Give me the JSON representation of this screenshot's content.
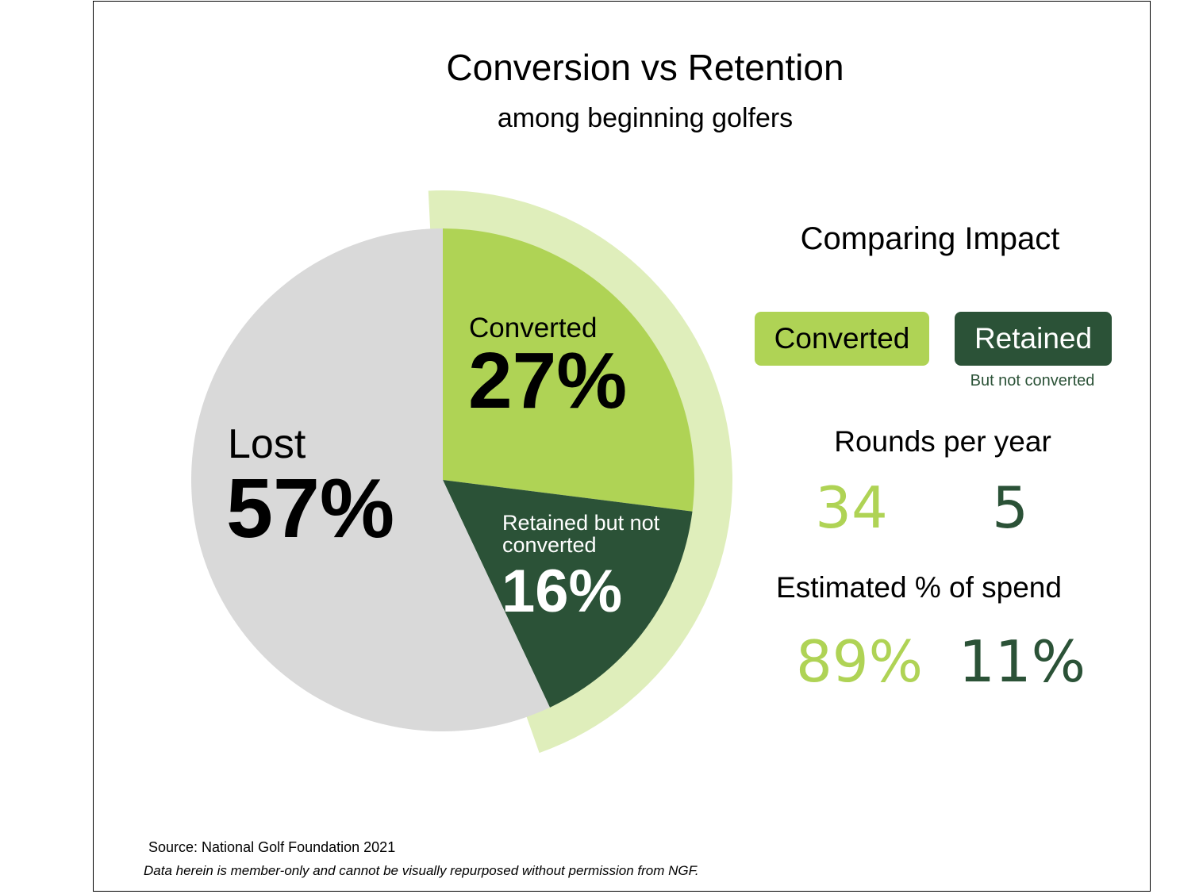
{
  "chart_data": {
    "type": "pie",
    "title": "Conversion vs Retention",
    "subtitle": "among beginning golfers",
    "categories": [
      "Converted",
      "Retained but not converted",
      "Lost"
    ],
    "values": [
      27,
      16,
      57
    ],
    "value_labels": [
      "27%",
      "16%",
      "57%"
    ],
    "colors": [
      "#afd355",
      "#2b5237",
      "#d9d9d9"
    ],
    "highlight_color": "#dfeebb"
  },
  "impact": {
    "title": "Comparing Impact",
    "groups": [
      {
        "label": "Converted",
        "color": "#afd355"
      },
      {
        "label": "Retained",
        "sublabel": "But not converted",
        "color": "#2b5237"
      }
    ],
    "metrics": [
      {
        "title": "Rounds per year",
        "values": [
          34,
          5
        ]
      },
      {
        "title": "Estimated % of spend",
        "values": [
          89,
          11
        ],
        "value_labels": [
          "89%",
          "11%"
        ]
      }
    ]
  },
  "source": "Source: National Golf Foundation 2021",
  "disclaimer": "Data herein is member-only and cannot be visually repurposed without permission from NGF."
}
